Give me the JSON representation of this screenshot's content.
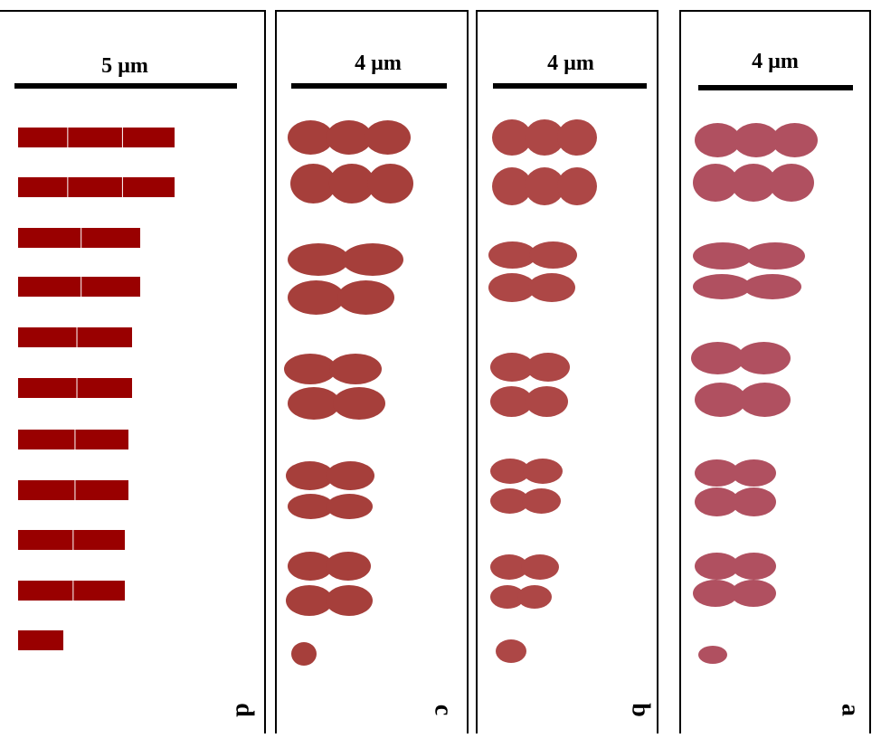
{
  "panels": [
    {
      "scale": "5 µm",
      "label": "d"
    },
    {
      "scale": "4 µm",
      "label": "c"
    },
    {
      "scale": "4 µm",
      "label": "b"
    },
    {
      "scale": "4 µm",
      "label": "a"
    }
  ]
}
